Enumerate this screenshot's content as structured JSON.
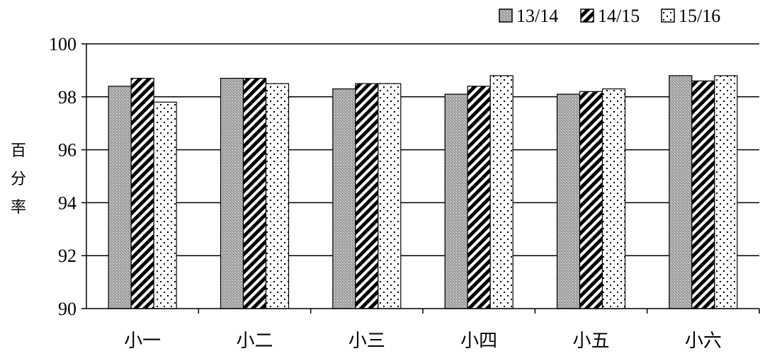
{
  "chart_data": {
    "type": "bar",
    "title": "",
    "xlabel": "",
    "ylabel": "百分率",
    "categories": [
      "小一",
      "小二",
      "小三",
      "小四",
      "小五",
      "小六"
    ],
    "series": [
      {
        "name": "13/14",
        "values": [
          98.4,
          98.7,
          98.3,
          98.1,
          98.1,
          98.8
        ],
        "color": "#9a9a9a",
        "pattern": "dots-gray"
      },
      {
        "name": "14/15",
        "values": [
          98.7,
          98.7,
          98.5,
          98.4,
          98.2,
          98.6
        ],
        "color": "#000000",
        "pattern": "diagonal-hatch"
      },
      {
        "name": "15/16",
        "values": [
          97.8,
          98.5,
          98.5,
          98.8,
          98.3,
          98.8
        ],
        "color": "#ffffff",
        "pattern": "sparse-dots"
      }
    ],
    "ylim": [
      90,
      100
    ],
    "yticks": [
      90,
      92,
      94,
      96,
      98,
      100
    ],
    "grid": true,
    "legend_position": "top-right"
  }
}
